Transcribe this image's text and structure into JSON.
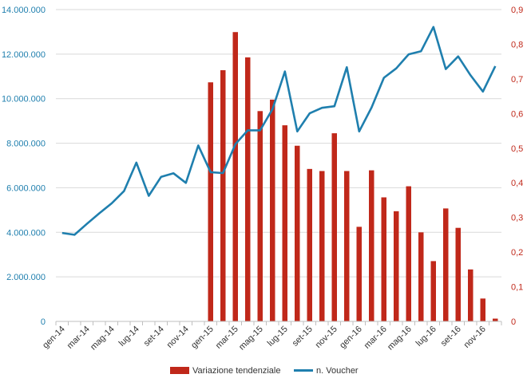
{
  "chart_data": {
    "type": "bar+line",
    "categories": [
      "gen-14",
      "feb-14",
      "mar-14",
      "apr-14",
      "mag-14",
      "giu-14",
      "lug-14",
      "ago-14",
      "set-14",
      "ott-14",
      "nov-14",
      "dic-14",
      "gen-15",
      "feb-15",
      "mar-15",
      "apr-15",
      "mag-15",
      "giu-15",
      "lug-15",
      "ago-15",
      "set-15",
      "ott-15",
      "nov-15",
      "dic-15",
      "gen-16",
      "feb-16",
      "mar-16",
      "apr-16",
      "mag-16",
      "giu-16",
      "lug-16",
      "ago-16",
      "set-16",
      "ott-16",
      "nov-16",
      "dic-16"
    ],
    "x_tick_labels": [
      "gen-14",
      "mar-14",
      "mag-14",
      "lug-14",
      "set-14",
      "nov-14",
      "gen-15",
      "mar-15",
      "mag-15",
      "lug-15",
      "set-15",
      "nov-15",
      "gen-16",
      "mar-16",
      "mag-16",
      "lug-16",
      "set-16",
      "nov-16"
    ],
    "left_axis": {
      "ylim": [
        0,
        14000000
      ],
      "ticks": [
        0,
        2000000,
        4000000,
        6000000,
        8000000,
        10000000,
        12000000,
        14000000
      ],
      "tick_labels": [
        "0",
        "2.000.000",
        "4.000.000",
        "6.000.000",
        "8.000.000",
        "10.000.000",
        "12.000.000",
        "14.000.000"
      ],
      "color": "#1f7fae"
    },
    "right_axis": {
      "ylim": [
        0,
        0.9
      ],
      "ticks": [
        0,
        0.1,
        0.2,
        0.3,
        0.4,
        0.5,
        0.6,
        0.7,
        0.8,
        0.9
      ],
      "tick_labels": [
        "0",
        "0,1",
        "0,2",
        "0,3",
        "0,4",
        "0,5",
        "0,6",
        "0,7",
        "0,8",
        "0,9"
      ],
      "color": "#c0281a"
    },
    "series": [
      {
        "name": "Variazione tendenziale",
        "type": "bar",
        "axis": "right",
        "color": "#c0281a",
        "values": [
          null,
          null,
          null,
          null,
          null,
          null,
          null,
          null,
          null,
          null,
          null,
          null,
          0.69,
          0.725,
          0.835,
          0.762,
          0.607,
          0.64,
          0.566,
          0.507,
          0.44,
          0.434,
          0.543,
          0.434,
          0.273,
          0.436,
          0.358,
          0.318,
          0.39,
          0.257,
          0.174,
          0.326,
          0.27,
          0.15,
          0.066,
          0.008
        ]
      },
      {
        "name": "n. Voucher",
        "type": "line",
        "axis": "left",
        "color": "#1f7fae",
        "values": [
          3970000,
          3890000,
          4380000,
          4850000,
          5300000,
          5850000,
          7130000,
          5640000,
          6490000,
          6650000,
          6220000,
          7900000,
          6700000,
          6660000,
          7960000,
          8580000,
          8580000,
          9530000,
          11220000,
          8530000,
          9340000,
          9590000,
          9660000,
          11410000,
          8530000,
          9600000,
          10940000,
          11360000,
          11990000,
          12130000,
          13220000,
          11330000,
          11900000,
          11050000,
          10320000,
          11460000
        ]
      }
    ],
    "legend": {
      "position": "bottom"
    },
    "grid": true
  }
}
